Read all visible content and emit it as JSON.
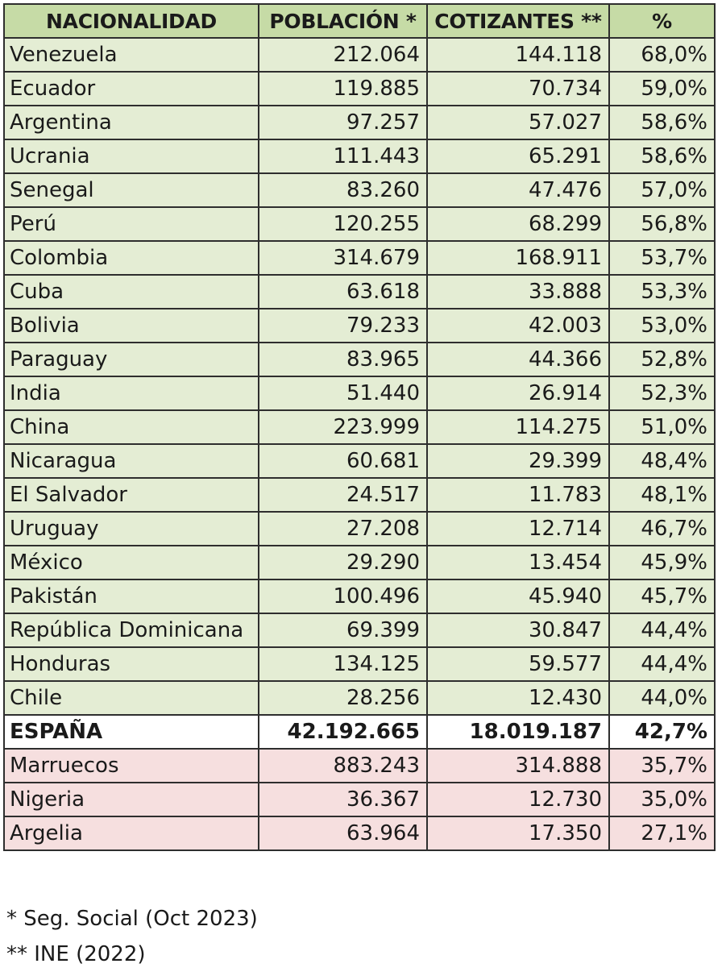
{
  "table": {
    "headers": [
      "NACIONALIDAD",
      "POBLACIÓN *",
      "COTIZANTES **",
      "%"
    ],
    "rows": [
      {
        "name": "Venezuela",
        "poblacion": "212.064",
        "cotizantes": "144.118",
        "pct": "68,0%",
        "group": "above"
      },
      {
        "name": "Ecuador",
        "poblacion": "119.885",
        "cotizantes": "70.734",
        "pct": "59,0%",
        "group": "above"
      },
      {
        "name": "Argentina",
        "poblacion": "97.257",
        "cotizantes": "57.027",
        "pct": "58,6%",
        "group": "above"
      },
      {
        "name": "Ucrania",
        "poblacion": "111.443",
        "cotizantes": "65.291",
        "pct": "58,6%",
        "group": "above"
      },
      {
        "name": "Senegal",
        "poblacion": "83.260",
        "cotizantes": "47.476",
        "pct": "57,0%",
        "group": "above"
      },
      {
        "name": "Perú",
        "poblacion": "120.255",
        "cotizantes": "68.299",
        "pct": "56,8%",
        "group": "above"
      },
      {
        "name": "Colombia",
        "poblacion": "314.679",
        "cotizantes": "168.911",
        "pct": "53,7%",
        "group": "above"
      },
      {
        "name": "Cuba",
        "poblacion": "63.618",
        "cotizantes": "33.888",
        "pct": "53,3%",
        "group": "above"
      },
      {
        "name": "Bolivia",
        "poblacion": "79.233",
        "cotizantes": "42.003",
        "pct": "53,0%",
        "group": "above"
      },
      {
        "name": "Paraguay",
        "poblacion": "83.965",
        "cotizantes": "44.366",
        "pct": "52,8%",
        "group": "above"
      },
      {
        "name": "India",
        "poblacion": "51.440",
        "cotizantes": "26.914",
        "pct": "52,3%",
        "group": "above"
      },
      {
        "name": "China",
        "poblacion": "223.999",
        "cotizantes": "114.275",
        "pct": "51,0%",
        "group": "above"
      },
      {
        "name": "Nicaragua",
        "poblacion": "60.681",
        "cotizantes": "29.399",
        "pct": "48,4%",
        "group": "above"
      },
      {
        "name": "El Salvador",
        "poblacion": "24.517",
        "cotizantes": "11.783",
        "pct": "48,1%",
        "group": "above"
      },
      {
        "name": "Uruguay",
        "poblacion": "27.208",
        "cotizantes": "12.714",
        "pct": "46,7%",
        "group": "above"
      },
      {
        "name": "México",
        "poblacion": "29.290",
        "cotizantes": "13.454",
        "pct": "45,9%",
        "group": "above"
      },
      {
        "name": "Pakistán",
        "poblacion": "100.496",
        "cotizantes": "45.940",
        "pct": "45,7%",
        "group": "above"
      },
      {
        "name": "República Dominicana",
        "poblacion": "69.399",
        "cotizantes": "30.847",
        "pct": "44,4%",
        "group": "above"
      },
      {
        "name": "Honduras",
        "poblacion": "134.125",
        "cotizantes": "59.577",
        "pct": "44,4%",
        "group": "above"
      },
      {
        "name": "Chile",
        "poblacion": "28.256",
        "cotizantes": "12.430",
        "pct": "44,0%",
        "group": "above"
      },
      {
        "name": "ESPAÑA",
        "poblacion": "42.192.665",
        "cotizantes": "18.019.187",
        "pct": "42,7%",
        "group": "reference"
      },
      {
        "name": "Marruecos",
        "poblacion": "883.243",
        "cotizantes": "314.888",
        "pct": "35,7%",
        "group": "below"
      },
      {
        "name": "Nigeria",
        "poblacion": "36.367",
        "cotizantes": "12.730",
        "pct": "35,0%",
        "group": "below"
      },
      {
        "name": "Argelia",
        "poblacion": "63.964",
        "cotizantes": "17.350",
        "pct": "27,1%",
        "group": "below"
      }
    ]
  },
  "notes": [
    "* Seg. Social (Oct 2023)",
    "** INE (2022)"
  ],
  "colors": {
    "header_bg": "#c6dba6",
    "above_bg": "#e4edd4",
    "reference_bg": "#ffffff",
    "below_bg": "#f6dfdf",
    "border": "#2e2e2e"
  }
}
